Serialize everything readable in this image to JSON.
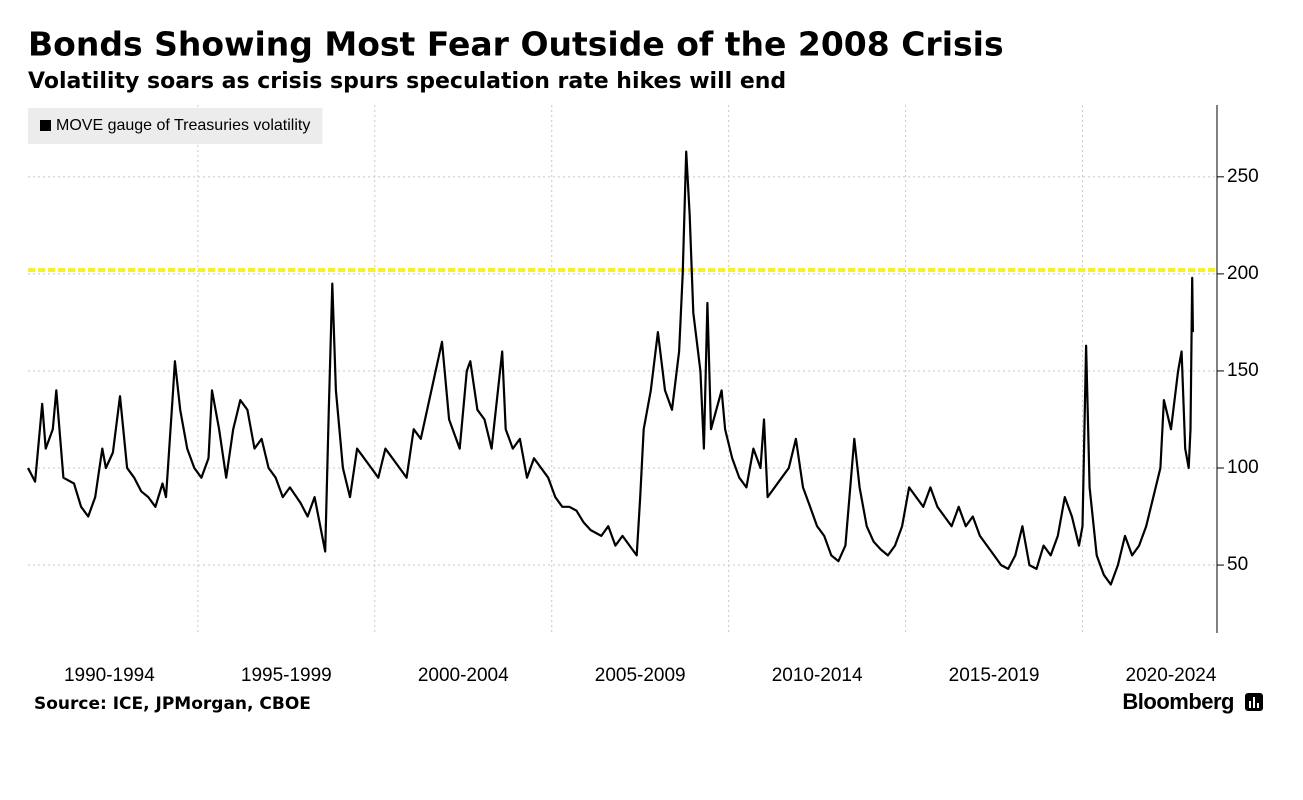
{
  "chart_data": {
    "type": "line",
    "title": "Bonds Showing Most Fear Outside of the 2008 Crisis",
    "subtitle": "Volatility soars as crisis spurs speculation rate hikes will end",
    "source": "Source: ICE, JPMorgan, CBOE",
    "brand": "Bloomberg",
    "x": [
      1990.2,
      1990.4,
      1990.6,
      1990.7,
      1990.9,
      1991.0,
      1991.2,
      1991.5,
      1991.7,
      1991.9,
      1992.1,
      1992.3,
      1992.4,
      1992.6,
      1992.8,
      1993.0,
      1993.2,
      1993.4,
      1993.6,
      1993.8,
      1994.0,
      1994.1,
      1994.3,
      1994.35,
      1994.5,
      1994.7,
      1994.9,
      1995.1,
      1995.3,
      1995.4,
      1995.6,
      1995.8,
      1996.0,
      1996.2,
      1996.4,
      1996.6,
      1996.8,
      1997.0,
      1997.2,
      1997.4,
      1997.6,
      1997.9,
      1998.1,
      1998.3,
      1998.6,
      1998.7,
      1998.8,
      1998.9,
      1999.1,
      1999.3,
      1999.5,
      1999.7,
      1999.9,
      2000.1,
      2000.3,
      2000.5,
      2000.7,
      2000.9,
      2001.1,
      2001.3,
      2001.6,
      2001.9,
      2002.1,
      2002.4,
      2002.6,
      2002.7,
      2002.9,
      2003.1,
      2003.3,
      2003.6,
      2003.7,
      2003.9,
      2004.1,
      2004.3,
      2004.5,
      2004.7,
      2004.9,
      2005.1,
      2005.3,
      2005.5,
      2005.7,
      2005.9,
      2006.1,
      2006.4,
      2006.6,
      2006.8,
      2007.0,
      2007.4,
      2007.5,
      2007.6,
      2007.8,
      2008.0,
      2008.2,
      2008.4,
      2008.6,
      2008.7,
      2008.8,
      2008.9,
      2009.0,
      2009.2,
      2009.3,
      2009.4,
      2009.5,
      2009.8,
      2009.9,
      2010.1,
      2010.3,
      2010.5,
      2010.7,
      2010.9,
      2011.0,
      2011.1,
      2011.5,
      2011.7,
      2011.9,
      2012.1,
      2012.3,
      2012.5,
      2012.7,
      2012.9,
      2013.1,
      2013.3,
      2013.55,
      2013.7,
      2013.9,
      2014.1,
      2014.3,
      2014.5,
      2014.7,
      2014.9,
      2015.1,
      2015.3,
      2015.5,
      2015.7,
      2015.9,
      2016.1,
      2016.3,
      2016.5,
      2016.7,
      2016.9,
      2017.1,
      2017.3,
      2017.5,
      2017.7,
      2017.9,
      2018.1,
      2018.3,
      2018.5,
      2018.7,
      2018.9,
      2019.1,
      2019.3,
      2019.5,
      2019.7,
      2019.9,
      2020.0,
      2020.1,
      2020.2,
      2020.4,
      2020.6,
      2020.8,
      2021.0,
      2021.2,
      2021.4,
      2021.6,
      2021.8,
      2022.0,
      2022.2,
      2022.3,
      2022.5,
      2022.7,
      2022.8,
      2022.9,
      2023.0,
      2023.05,
      2023.1,
      2023.12
    ],
    "series": [
      {
        "name": "MOVE gauge of Treasuries volatility",
        "color": "#000000",
        "values": [
          100,
          93,
          133,
          110,
          120,
          140,
          95,
          92,
          80,
          75,
          85,
          110,
          100,
          108,
          137,
          100,
          95,
          88,
          85,
          80,
          92,
          85,
          140,
          155,
          130,
          110,
          100,
          95,
          105,
          140,
          120,
          95,
          120,
          135,
          130,
          110,
          115,
          100,
          95,
          85,
          90,
          82,
          75,
          85,
          57,
          130,
          195,
          140,
          100,
          85,
          110,
          105,
          100,
          95,
          110,
          105,
          100,
          95,
          120,
          115,
          140,
          165,
          125,
          110,
          150,
          155,
          130,
          125,
          110,
          160,
          120,
          110,
          115,
          95,
          105,
          100,
          95,
          85,
          80,
          80,
          78,
          72,
          68,
          65,
          70,
          60,
          65,
          55,
          85,
          120,
          140,
          170,
          140,
          130,
          160,
          200,
          263,
          230,
          180,
          150,
          110,
          185,
          120,
          140,
          120,
          105,
          95,
          90,
          110,
          100,
          125,
          85,
          95,
          100,
          115,
          90,
          80,
          70,
          65,
          55,
          52,
          60,
          115,
          90,
          70,
          62,
          58,
          55,
          60,
          70,
          90,
          85,
          80,
          90,
          80,
          75,
          70,
          80,
          70,
          75,
          65,
          60,
          55,
          50,
          48,
          55,
          70,
          50,
          48,
          60,
          55,
          65,
          85,
          75,
          60,
          70,
          163,
          90,
          55,
          45,
          40,
          50,
          65,
          55,
          60,
          70,
          85,
          100,
          135,
          120,
          150,
          160,
          110,
          100,
          120,
          198,
          170
        ]
      }
    ],
    "reference_line": {
      "value": 202,
      "color": "#f5f032"
    },
    "xlim": [
      1990.2,
      2023.8
    ],
    "xticks": [
      {
        "value": 1992.5,
        "label": "1990-1994"
      },
      {
        "value": 1997.5,
        "label": "1995-1999"
      },
      {
        "value": 2002.5,
        "label": "2000-2004"
      },
      {
        "value": 2007.5,
        "label": "2005-2009"
      },
      {
        "value": 2012.5,
        "label": "2010-2014"
      },
      {
        "value": 2017.5,
        "label": "2015-2019"
      },
      {
        "value": 2022.5,
        "label": "2020-2024"
      }
    ],
    "ylim": [
      15,
      287
    ],
    "yticks": [
      50,
      100,
      150,
      200,
      250
    ],
    "grid": true,
    "legend": "top-left"
  }
}
